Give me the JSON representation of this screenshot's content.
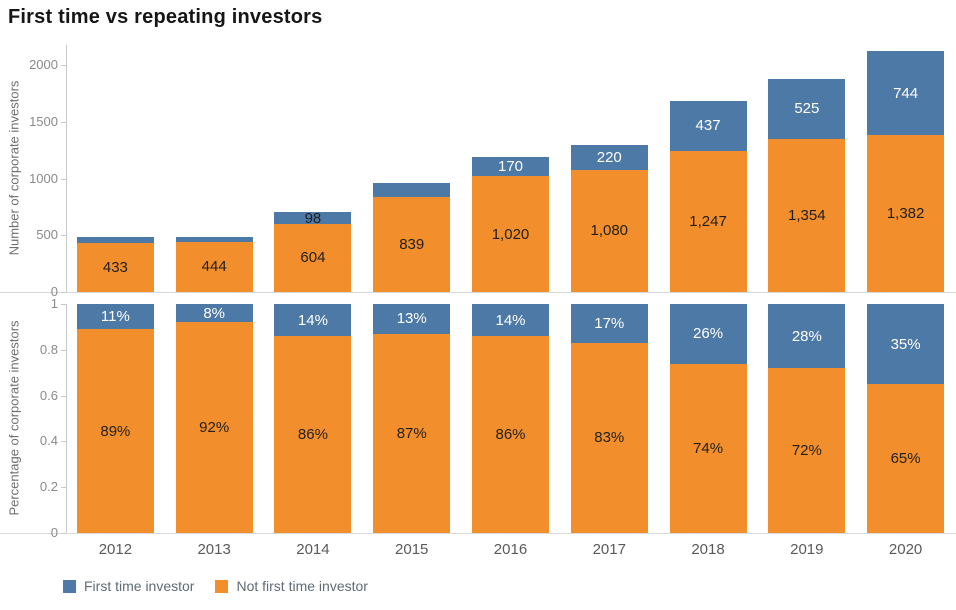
{
  "title": "First time vs repeating investors",
  "years": [
    "2012",
    "2013",
    "2014",
    "2015",
    "2016",
    "2017",
    "2018",
    "2019",
    "2020"
  ],
  "colors": {
    "first_time": "#4d79a7",
    "not_first_time": "#f28e2b"
  },
  "legend": {
    "items": [
      {
        "label": "First time investor",
        "color": "#4d79a7"
      },
      {
        "label": "Not first time investor",
        "color": "#f28e2b"
      }
    ]
  },
  "chart_data": [
    {
      "type": "bar",
      "stacked": true,
      "ylabel": "Number of corporate investors",
      "ylim": [
        0,
        2180
      ],
      "yticks": [
        0,
        500,
        1000,
        1500,
        2000
      ],
      "ytick_labels": [
        "0",
        "500",
        "1000",
        "1500",
        "2000"
      ],
      "grid": false,
      "categories": [
        "2012",
        "2013",
        "2014",
        "2015",
        "2016",
        "2017",
        "2018",
        "2019",
        "2020"
      ],
      "series": [
        {
          "name": "First time investor",
          "color": "#4d79a7",
          "values": [
            54,
            39,
            98,
            125,
            170,
            220,
            437,
            525,
            744
          ],
          "labels": [
            "",
            "",
            "98",
            "",
            "170",
            "220",
            "437",
            "525",
            "744"
          ],
          "label_color": "#ffffff",
          "label_color_overrides": {
            "2": "#1f1f1f"
          }
        },
        {
          "name": "Not first time investor",
          "color": "#f28e2b",
          "values": [
            433,
            444,
            604,
            839,
            1020,
            1080,
            1247,
            1354,
            1382
          ],
          "labels": [
            "433",
            "444",
            "604",
            "839",
            "1,020",
            "1,080",
            "1,247",
            "1,354",
            "1,382"
          ],
          "label_color": "#1f1f1f",
          "label_color_overrides": {}
        }
      ]
    },
    {
      "type": "bar",
      "stacked": true,
      "percent": true,
      "ylabel": "Percentage of corporate investors",
      "ylim": [
        0,
        1
      ],
      "yticks": [
        0,
        0.2,
        0.4,
        0.6,
        0.8,
        1
      ],
      "ytick_labels": [
        "0",
        "0.2",
        "0.4",
        "0.6",
        "0.8",
        "1"
      ],
      "grid": false,
      "categories": [
        "2012",
        "2013",
        "2014",
        "2015",
        "2016",
        "2017",
        "2018",
        "2019",
        "2020"
      ],
      "series": [
        {
          "name": "First time investor",
          "color": "#4d79a7",
          "values": [
            0.11,
            0.08,
            0.14,
            0.13,
            0.14,
            0.17,
            0.26,
            0.28,
            0.35
          ],
          "labels": [
            "11%",
            "8%",
            "14%",
            "13%",
            "14%",
            "17%",
            "26%",
            "28%",
            "35%"
          ],
          "label_color": "#ffffff",
          "label_color_overrides": {}
        },
        {
          "name": "Not first time investor",
          "color": "#f28e2b",
          "values": [
            0.89,
            0.92,
            0.86,
            0.87,
            0.86,
            0.83,
            0.74,
            0.72,
            0.65
          ],
          "labels": [
            "89%",
            "92%",
            "86%",
            "87%",
            "86%",
            "83%",
            "74%",
            "72%",
            "65%"
          ],
          "label_color": "#1f1f1f",
          "label_color_overrides": {}
        }
      ]
    }
  ]
}
